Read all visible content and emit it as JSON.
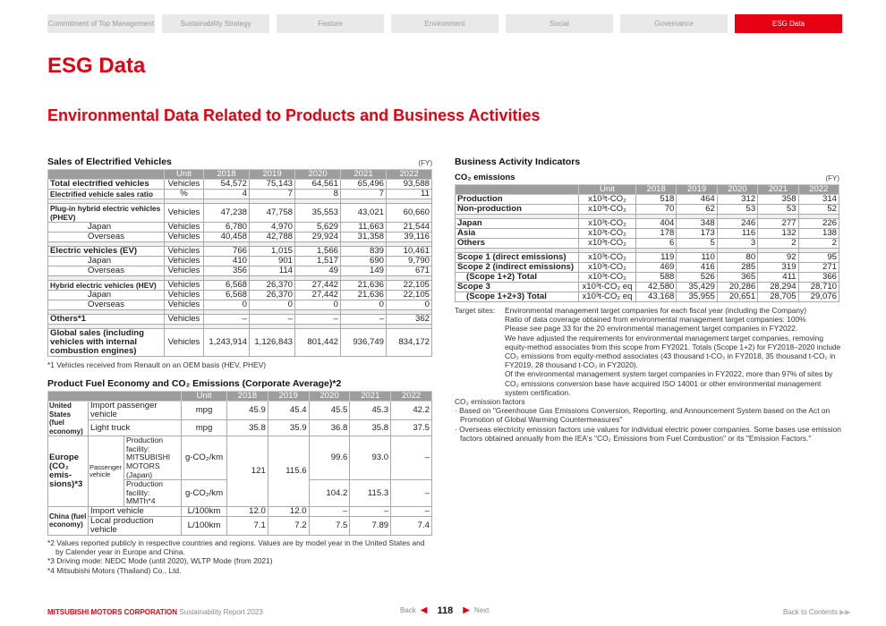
{
  "nav": [
    "Commitment of Top Management",
    "Sustainability Strategy",
    "Feature",
    "Environment",
    "Social",
    "Governance",
    "ESG Data"
  ],
  "nav_active": "ESG Data",
  "page_title": "ESG Data",
  "section_title": "Environmental Data Related to Products and Business Activities",
  "accent_color": "#e60012",
  "sales": {
    "title": "Sales of Electrified Vehicles",
    "fy": "(FY)",
    "headers": [
      "",
      "Unit",
      "2018",
      "2019",
      "2020",
      "2021",
      "2022"
    ],
    "groups": [
      [
        {
          "label": "Total electrified vehicles",
          "bold": true,
          "unit": "Vehicles",
          "values": [
            "54,572",
            "75,143",
            "64,561",
            "65,496",
            "93,588"
          ]
        },
        {
          "label": "Electrified vehicle sales ratio",
          "bold": true,
          "unit": "%",
          "values": [
            "4",
            "7",
            "8",
            "7",
            "11"
          ]
        }
      ],
      [
        {
          "label": "Plug-in hybrid electric vehicles (PHEV)",
          "bold": true,
          "unit": "Vehicles",
          "values": [
            "47,238",
            "47,758",
            "35,553",
            "43,021",
            "60,660"
          ]
        },
        {
          "label": "Japan",
          "indent": true,
          "unit": "Vehicles",
          "values": [
            "6,780",
            "4,970",
            "5,629",
            "11,663",
            "21,544"
          ]
        },
        {
          "label": "Overseas",
          "indent": true,
          "unit": "Vehicles",
          "values": [
            "40,458",
            "42,788",
            "29,924",
            "31,358",
            "39,116"
          ]
        }
      ],
      [
        {
          "label": "Electric vehicles (EV)",
          "bold": true,
          "unit": "Vehicles",
          "values": [
            "766",
            "1,015",
            "1,566",
            "839",
            "10,461"
          ]
        },
        {
          "label": "Japan",
          "indent": true,
          "unit": "Vehicles",
          "values": [
            "410",
            "901",
            "1,517",
            "690",
            "9,790"
          ]
        },
        {
          "label": "Overseas",
          "indent": true,
          "unit": "Vehicles",
          "values": [
            "356",
            "114",
            "49",
            "149",
            "671"
          ]
        }
      ],
      [
        {
          "label": "Hybrid electric vehicles (HEV)",
          "bold": true,
          "unit": "Vehicles",
          "values": [
            "6,568",
            "26,370",
            "27,442",
            "21,636",
            "22,105"
          ]
        },
        {
          "label": "Japan",
          "indent": true,
          "unit": "Vehicles",
          "values": [
            "6,568",
            "26,370",
            "27,442",
            "21,636",
            "22,105"
          ]
        },
        {
          "label": "Overseas",
          "indent": true,
          "unit": "Vehicles",
          "values": [
            "0",
            "0",
            "0",
            "0",
            "0"
          ]
        }
      ],
      [
        {
          "label": "Others*1",
          "bold": true,
          "unit": "Vehicles",
          "values": [
            "–",
            "–",
            "–",
            "–",
            "362"
          ]
        }
      ],
      [
        {
          "label": "Global sales (including vehicles with internal combustion engines)",
          "bold": true,
          "unit": "Vehicles",
          "values": [
            "1,243,914",
            "1,126,843",
            "801,442",
            "936,749",
            "834,172"
          ]
        }
      ]
    ],
    "footnote": "*1 Vehicles received from Renault on an OEM basis (HEV, PHEV)"
  },
  "fuel": {
    "title": "Product Fuel Economy and CO₂ Emissions (Corporate Average)*2",
    "headers": [
      "Unit",
      "2018",
      "2019",
      "2020",
      "2021",
      "2022"
    ],
    "us": {
      "region": "United States (fuel economy)",
      "r1": {
        "label": "Import passenger vehicle",
        "unit": "mpg",
        "values": [
          "45.9",
          "45.4",
          "45.5",
          "45.3",
          "42.2"
        ]
      },
      "r2": {
        "label": "Light truck",
        "unit": "mpg",
        "values": [
          "35.8",
          "35.9",
          "36.8",
          "35.8",
          "37.5"
        ]
      }
    },
    "eu": {
      "region": "Europe (CO₂ emis-sions)*3",
      "sub": "Passenger vehicle",
      "merged_2018": "121",
      "merged_2019": "115.6",
      "r1": {
        "label": "Production facility: MITSUBISHI MOTORS (Japan)",
        "unit": "g-CO₂/km",
        "values": [
          "99.6",
          "93.0",
          "–"
        ]
      },
      "r2": {
        "label": "Production facility: MMTh*4",
        "unit": "g-CO₂/km",
        "values": [
          "104.2",
          "115.3",
          "–"
        ]
      }
    },
    "cn": {
      "region": "China (fuel economy)",
      "r1": {
        "label": "Import vehicle",
        "unit": "L/100km",
        "values": [
          "12.0",
          "12.0",
          "–",
          "–",
          "–"
        ]
      },
      "r2": {
        "label": "Local production vehicle",
        "unit": "L/100km",
        "values": [
          "7.1",
          "7.2",
          "7.5",
          "7.89",
          "7.4"
        ]
      }
    },
    "notes": [
      "*2 Values reported publicly in respective countries and regions. Values are by model year in the United States and by Calender year in Europe and China.",
      "*3 Driving mode: NEDC Mode (until 2020), WLTP Mode (from 2021)",
      "*4 Mitsubishi Motors (Thailand) Co., Ltd."
    ]
  },
  "business": {
    "title": "Business Activity Indicators",
    "subtitle": "CO₂ emissions",
    "fy": "(FY)",
    "headers": [
      "",
      "Unit",
      "2018",
      "2019",
      "2020",
      "2021",
      "2022"
    ],
    "groups": [
      [
        {
          "label": "Production",
          "bold": true,
          "unit": "x10³t-CO₂",
          "values": [
            "518",
            "464",
            "312",
            "358",
            "314"
          ]
        },
        {
          "label": "Non-production",
          "bold": true,
          "unit": "x10³t-CO₂",
          "values": [
            "70",
            "62",
            "53",
            "53",
            "52"
          ]
        }
      ],
      [
        {
          "label": "Japan",
          "bold": true,
          "unit": "x10³t-CO₂",
          "values": [
            "404",
            "348",
            "246",
            "277",
            "226"
          ]
        },
        {
          "label": "Asia",
          "bold": true,
          "unit": "x10³t-CO₂",
          "values": [
            "178",
            "173",
            "116",
            "132",
            "138"
          ]
        },
        {
          "label": "Others",
          "bold": true,
          "unit": "x10³t-CO₂",
          "values": [
            "6",
            "5",
            "3",
            "2",
            "2"
          ]
        }
      ],
      [
        {
          "label": "Scope 1 (direct emissions)",
          "bold": true,
          "unit": "x10³t-CO₂",
          "values": [
            "119",
            "110",
            "80",
            "92",
            "95"
          ]
        },
        {
          "label": "Scope 2 (indirect emissions)",
          "bold": true,
          "unit": "x10³t-CO₂",
          "values": [
            "469",
            "416",
            "285",
            "319",
            "271"
          ]
        },
        {
          "label": "(Scope 1+2) Total",
          "bold": true,
          "sub": true,
          "unit": "x10³t-CO₂",
          "values": [
            "588",
            "526",
            "365",
            "411",
            "366"
          ]
        },
        {
          "label": "Scope 3",
          "bold": true,
          "unit": "x10³t-CO₂ eq",
          "values": [
            "42,580",
            "35,429",
            "20,286",
            "28,294",
            "28,710"
          ]
        },
        {
          "label": "(Scope 1+2+3) Total",
          "bold": true,
          "sub": true,
          "unit": "x10³t-CO₂ eq",
          "values": [
            "43,168",
            "35,955",
            "20,651",
            "28,705",
            "29,076"
          ]
        }
      ]
    ],
    "target_label": "Target sites:",
    "target_lines": [
      "Environmental management target companies for each fiscal year (including the Company)",
      "Ratio of data coverage obtained from environmental management target companies: 100%",
      "Please see page 33 for the 20 environmental management target companies in FY2022.",
      "We have adjusted the requirements for environmental management target companies, removing equity-method associates from this scope from FY2021. Totals (Scope 1+2) for FY2018–2020 include CO₂ emissions from equity-method associates (43 thousand t-CO₂ in FY2018, 35 thousand t-CO₂ in FY2019, 28 thousand t-CO₂ in FY2020).",
      "Of the environmental management system target companies in FY2022, more than 97% of sites by CO₂ emissions conversion base have acquired ISO 14001 or other environmental management system certification."
    ],
    "factors_title": "CO₂ emission factors",
    "factors": [
      "· Based on \"Greenhouse Gas Emissions Conversion, Reporting, and Announcement System based on the Act on Promotion of Global Warming Countermeasures\"",
      "· Overseas electricity emission factors use values for individual electric power companies. Some bases use emission factors obtained annually from the IEA's \"CO₂ Emissions from Fuel Combustion\" or its \"Emission Factors.\""
    ]
  },
  "footer": {
    "company": "MITSUBISHI MOTORS CORPORATION",
    "report": "Sustainability Report 2023",
    "back": "Back",
    "page": "118",
    "next": "Next",
    "contents": "Back to Contents"
  }
}
